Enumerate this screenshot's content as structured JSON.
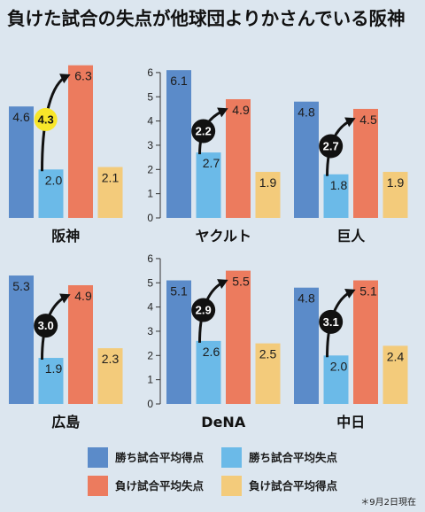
{
  "colors": {
    "background": "#dce6ef",
    "gap_circle": "#111111",
    "gap_circle_highlight": "#f8e62a"
  },
  "footnote": "＊9月2日現在",
  "chart_data": {
    "type": "bar",
    "title": "負けた試合の失点が他球団よりかさんでいる阪神",
    "categories": [
      "阪神",
      "ヤクルト",
      "巨人",
      "広島",
      "DeNA",
      "中日"
    ],
    "series": [
      {
        "name": "勝ち試合平均得点",
        "color": "#5b8bc9",
        "values": [
          4.6,
          6.1,
          4.8,
          5.3,
          5.1,
          4.8
        ],
        "labels": [
          "4.6",
          "6.1",
          "4.8",
          "5.3",
          "5.1",
          "4.8"
        ]
      },
      {
        "name": "勝ち試合平均失点",
        "color": "#6bbae8",
        "values": [
          2.0,
          2.7,
          1.8,
          1.9,
          2.6,
          2.0
        ],
        "labels": [
          "2.0",
          "2.7",
          "1.8",
          "1.9",
          "2.6",
          "2.0"
        ]
      },
      {
        "name": "負け試合平均失点",
        "color": "#ec7b5e",
        "values": [
          6.3,
          4.9,
          4.5,
          4.9,
          5.5,
          5.1
        ],
        "labels": [
          "6.3",
          "4.9",
          "4.5",
          "4.9",
          "5.5",
          "5.1"
        ]
      },
      {
        "name": "負け試合平均得点",
        "color": "#f3cb7b",
        "values": [
          2.1,
          1.9,
          1.9,
          2.3,
          2.5,
          2.4
        ],
        "labels": [
          "2.1",
          "1.9",
          "1.9",
          "2.3",
          "2.5",
          "2.4"
        ]
      }
    ],
    "annotations": [
      {
        "text": "4.3",
        "from_series": 1,
        "to_series": 2,
        "highlight": true
      },
      {
        "text": "2.2",
        "from_series": 1,
        "to_series": 2,
        "highlight": false
      },
      {
        "text": "2.7",
        "from_series": 1,
        "to_series": 2,
        "highlight": false
      },
      {
        "text": "3.0",
        "from_series": 1,
        "to_series": 2,
        "highlight": false
      },
      {
        "text": "2.9",
        "from_series": 1,
        "to_series": 2,
        "highlight": false
      },
      {
        "text": "3.1",
        "from_series": 1,
        "to_series": 2,
        "highlight": false
      }
    ],
    "ylim": [
      0,
      6
    ],
    "yticks": [
      0,
      1,
      2,
      3,
      4,
      5,
      6
    ],
    "grid": false,
    "legend": "bottom"
  }
}
